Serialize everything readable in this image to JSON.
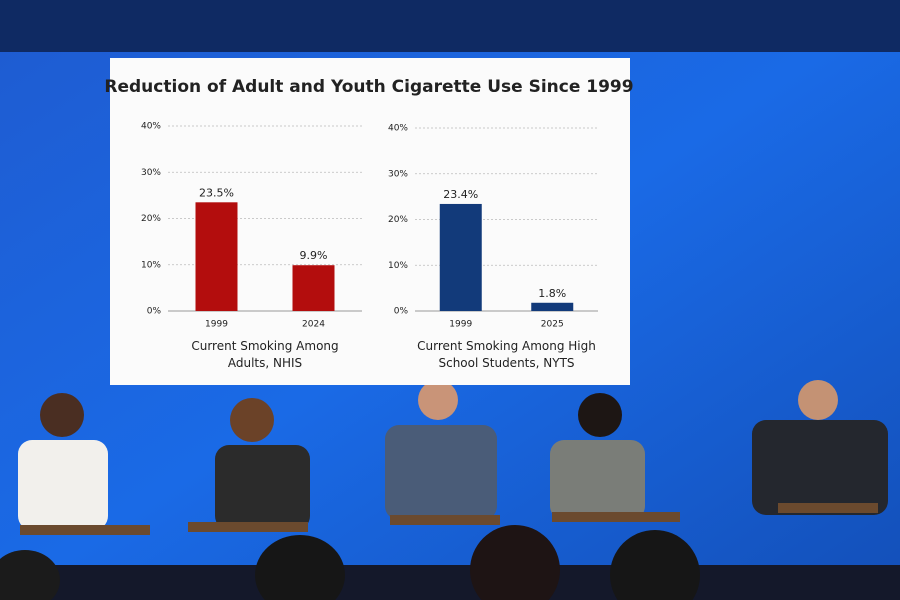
{
  "slide_title": "Reduction of Adult and Youth Cigarette Use Since 1999",
  "chart_data": [
    {
      "type": "bar",
      "x_label": "Current Smoking Among Adults, NHIS",
      "categories": [
        "1999",
        "2024"
      ],
      "values": [
        23.5,
        9.9
      ],
      "value_labels": [
        "23.5%",
        "9.9%"
      ],
      "color": "#b30d0d",
      "ylim": [
        0,
        40
      ],
      "yticks": [
        {
          "value": 0,
          "label": "0%"
        },
        {
          "value": 10,
          "label": "10%"
        },
        {
          "value": 20,
          "label": "20%"
        },
        {
          "value": 30,
          "label": "30%"
        },
        {
          "value": 40,
          "label": "40%"
        }
      ],
      "grid": true
    },
    {
      "type": "bar",
      "x_label": "Current Smoking Among High School Students, NYTS",
      "categories": [
        "1999",
        "2025"
      ],
      "values": [
        23.4,
        1.8
      ],
      "value_labels": [
        "23.4%",
        "1.8%"
      ],
      "color": "#123a7a",
      "ylim": [
        0,
        40
      ],
      "yticks": [
        {
          "value": 0,
          "label": "0%"
        },
        {
          "value": 10,
          "label": "10%"
        },
        {
          "value": 20,
          "label": "20%"
        },
        {
          "value": 30,
          "label": "30%"
        },
        {
          "value": 40,
          "label": "40%"
        }
      ],
      "grid": true
    }
  ]
}
